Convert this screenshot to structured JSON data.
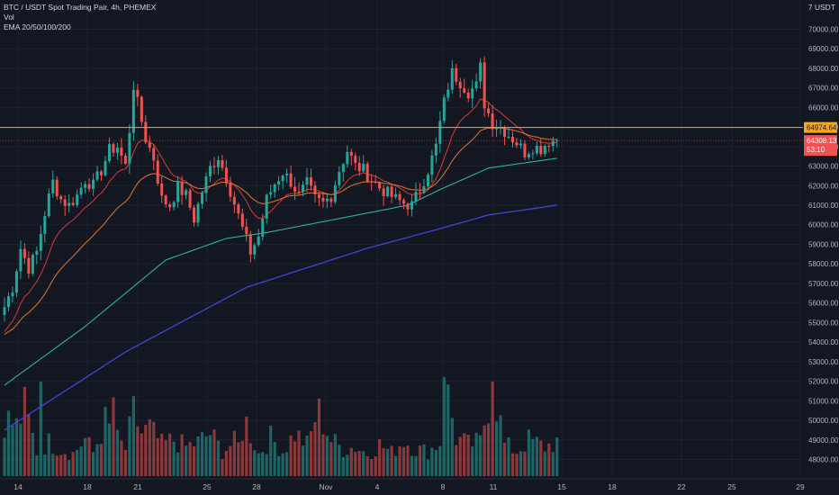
{
  "legend": {
    "symbol_line": "BTC / USDT Spot Trading Pair, 4h, PHEMEX",
    "vol_line": "Vol",
    "ema_line": "EMA 20/50/100/200"
  },
  "corner_label": "7 USDT",
  "price_tag": {
    "price": "64308.13",
    "countdown": "53:10"
  },
  "level_tag": "64974.64",
  "colors": {
    "background": "#131722",
    "grid": "#1e222d",
    "axis_text": "#b2b5be",
    "up": "#26a69a",
    "down": "#ef5350",
    "ema20": "#d63a3a",
    "ema50": "#e2762b",
    "ema100": "#2bb3a2",
    "ema200": "#3f45d6",
    "level_line": "#f5a623"
  },
  "chart_data": {
    "type": "candlestick",
    "interval": "4h",
    "y_ticks": [
      "48000.00",
      "49000.00",
      "50000.00",
      "51000.00",
      "52000.00",
      "53000.00",
      "54000.00",
      "55000.00",
      "56000.00",
      "57000.00",
      "58000.00",
      "59000.00",
      "60000.00",
      "61000.00",
      "62000.00",
      "63000.00",
      "64000.00",
      "65000.00",
      "66000.00",
      "67000.00",
      "68000.00",
      "69000.00",
      "70000.00"
    ],
    "x_ticks": [
      "14",
      "18",
      "21",
      "25",
      "28",
      "Nov",
      "4",
      "8",
      "11",
      "15",
      "18",
      "22",
      "25",
      "29"
    ],
    "ylim": [
      47500,
      70500
    ],
    "horizontal_level": 64974.64,
    "last_price": 64308.13,
    "anchors": [
      [
        0,
        55800
      ],
      [
        2,
        56800
      ],
      [
        4,
        58800
      ],
      [
        6,
        57800
      ],
      [
        8,
        58600
      ],
      [
        10,
        60600
      ],
      [
        12,
        62200
      ],
      [
        14,
        61300
      ],
      [
        16,
        61000
      ],
      [
        18,
        61500
      ],
      [
        20,
        62300
      ],
      [
        22,
        62000
      ],
      [
        24,
        62800
      ],
      [
        26,
        63800
      ],
      [
        28,
        64000
      ],
      [
        30,
        63000
      ],
      [
        32,
        66700
      ],
      [
        33,
        66200
      ],
      [
        35,
        64400
      ],
      [
        37,
        63400
      ],
      [
        39,
        61300
      ],
      [
        41,
        61000
      ],
      [
        43,
        61900
      ],
      [
        45,
        61500
      ],
      [
        47,
        60300
      ],
      [
        49,
        61700
      ],
      [
        51,
        62900
      ],
      [
        53,
        63500
      ],
      [
        55,
        62400
      ],
      [
        57,
        61100
      ],
      [
        59,
        59800
      ],
      [
        61,
        58600
      ],
      [
        63,
        59400
      ],
      [
        65,
        61300
      ],
      [
        67,
        62100
      ],
      [
        69,
        62700
      ],
      [
        71,
        62200
      ],
      [
        73,
        61500
      ],
      [
        75,
        62100
      ],
      [
        77,
        61300
      ],
      [
        79,
        61100
      ],
      [
        81,
        61500
      ],
      [
        83,
        62800
      ],
      [
        85,
        63800
      ],
      [
        87,
        63000
      ],
      [
        89,
        62800
      ],
      [
        91,
        62300
      ],
      [
        93,
        61900
      ],
      [
        95,
        61600
      ],
      [
        97,
        61300
      ],
      [
        99,
        61100
      ],
      [
        101,
        61000
      ],
      [
        103,
        61800
      ],
      [
        105,
        62800
      ],
      [
        107,
        64000
      ],
      [
        109,
        66400
      ],
      [
        111,
        67800
      ],
      [
        113,
        67300
      ],
      [
        115,
        66800
      ],
      [
        117,
        67100
      ],
      [
        119,
        66200
      ],
      [
        121,
        65200
      ],
      [
        123,
        65000
      ],
      [
        125,
        64600
      ],
      [
        127,
        64200
      ],
      [
        129,
        63700
      ],
      [
        131,
        64000
      ],
      [
        133,
        63900
      ],
      [
        135,
        64300
      ],
      [
        137,
        64308
      ]
    ],
    "volume_anchors": [
      [
        0,
        52
      ],
      [
        3,
        44
      ],
      [
        5,
        61
      ],
      [
        8,
        22
      ],
      [
        11,
        30
      ],
      [
        14,
        24
      ],
      [
        17,
        20
      ],
      [
        20,
        33
      ],
      [
        22,
        21
      ],
      [
        25,
        48
      ],
      [
        27,
        36
      ],
      [
        30,
        24
      ],
      [
        32,
        56
      ],
      [
        34,
        38
      ],
      [
        36,
        42
      ],
      [
        39,
        28
      ],
      [
        42,
        32
      ],
      [
        45,
        26
      ],
      [
        48,
        30
      ],
      [
        51,
        38
      ],
      [
        54,
        22
      ],
      [
        57,
        30
      ],
      [
        60,
        47
      ],
      [
        63,
        20
      ],
      [
        66,
        34
      ],
      [
        69,
        22
      ],
      [
        72,
        38
      ],
      [
        75,
        28
      ],
      [
        78,
        56
      ],
      [
        81,
        32
      ],
      [
        84,
        24
      ],
      [
        87,
        26
      ],
      [
        90,
        20
      ],
      [
        93,
        28
      ],
      [
        96,
        21
      ],
      [
        99,
        32
      ],
      [
        102,
        24
      ],
      [
        105,
        22
      ],
      [
        108,
        30
      ],
      [
        109,
        88
      ],
      [
        112,
        34
      ],
      [
        115,
        28
      ],
      [
        118,
        30
      ],
      [
        121,
        84
      ],
      [
        124,
        28
      ],
      [
        127,
        22
      ],
      [
        130,
        32
      ],
      [
        134,
        26
      ],
      [
        137,
        30
      ]
    ],
    "volume_spikes": [
      [
        9,
        84
      ],
      [
        27,
        70
      ],
      [
        58,
        30
      ],
      [
        77,
        48
      ],
      [
        109,
        88
      ],
      [
        121,
        84
      ]
    ],
    "ema_offsets": {
      "ema20": 12,
      "ema50": 28
    },
    "ema100_anchors": [
      [
        0,
        51800
      ],
      [
        20,
        54800
      ],
      [
        40,
        58200
      ],
      [
        55,
        59300
      ],
      [
        65,
        59600
      ],
      [
        80,
        60200
      ],
      [
        100,
        61000
      ],
      [
        108,
        61800
      ],
      [
        120,
        62900
      ],
      [
        137,
        63400
      ]
    ],
    "ema200_anchors": [
      [
        0,
        49500
      ],
      [
        30,
        53500
      ],
      [
        60,
        56800
      ],
      [
        90,
        58800
      ],
      [
        108,
        59800
      ],
      [
        120,
        60500
      ],
      [
        137,
        61000
      ]
    ]
  }
}
